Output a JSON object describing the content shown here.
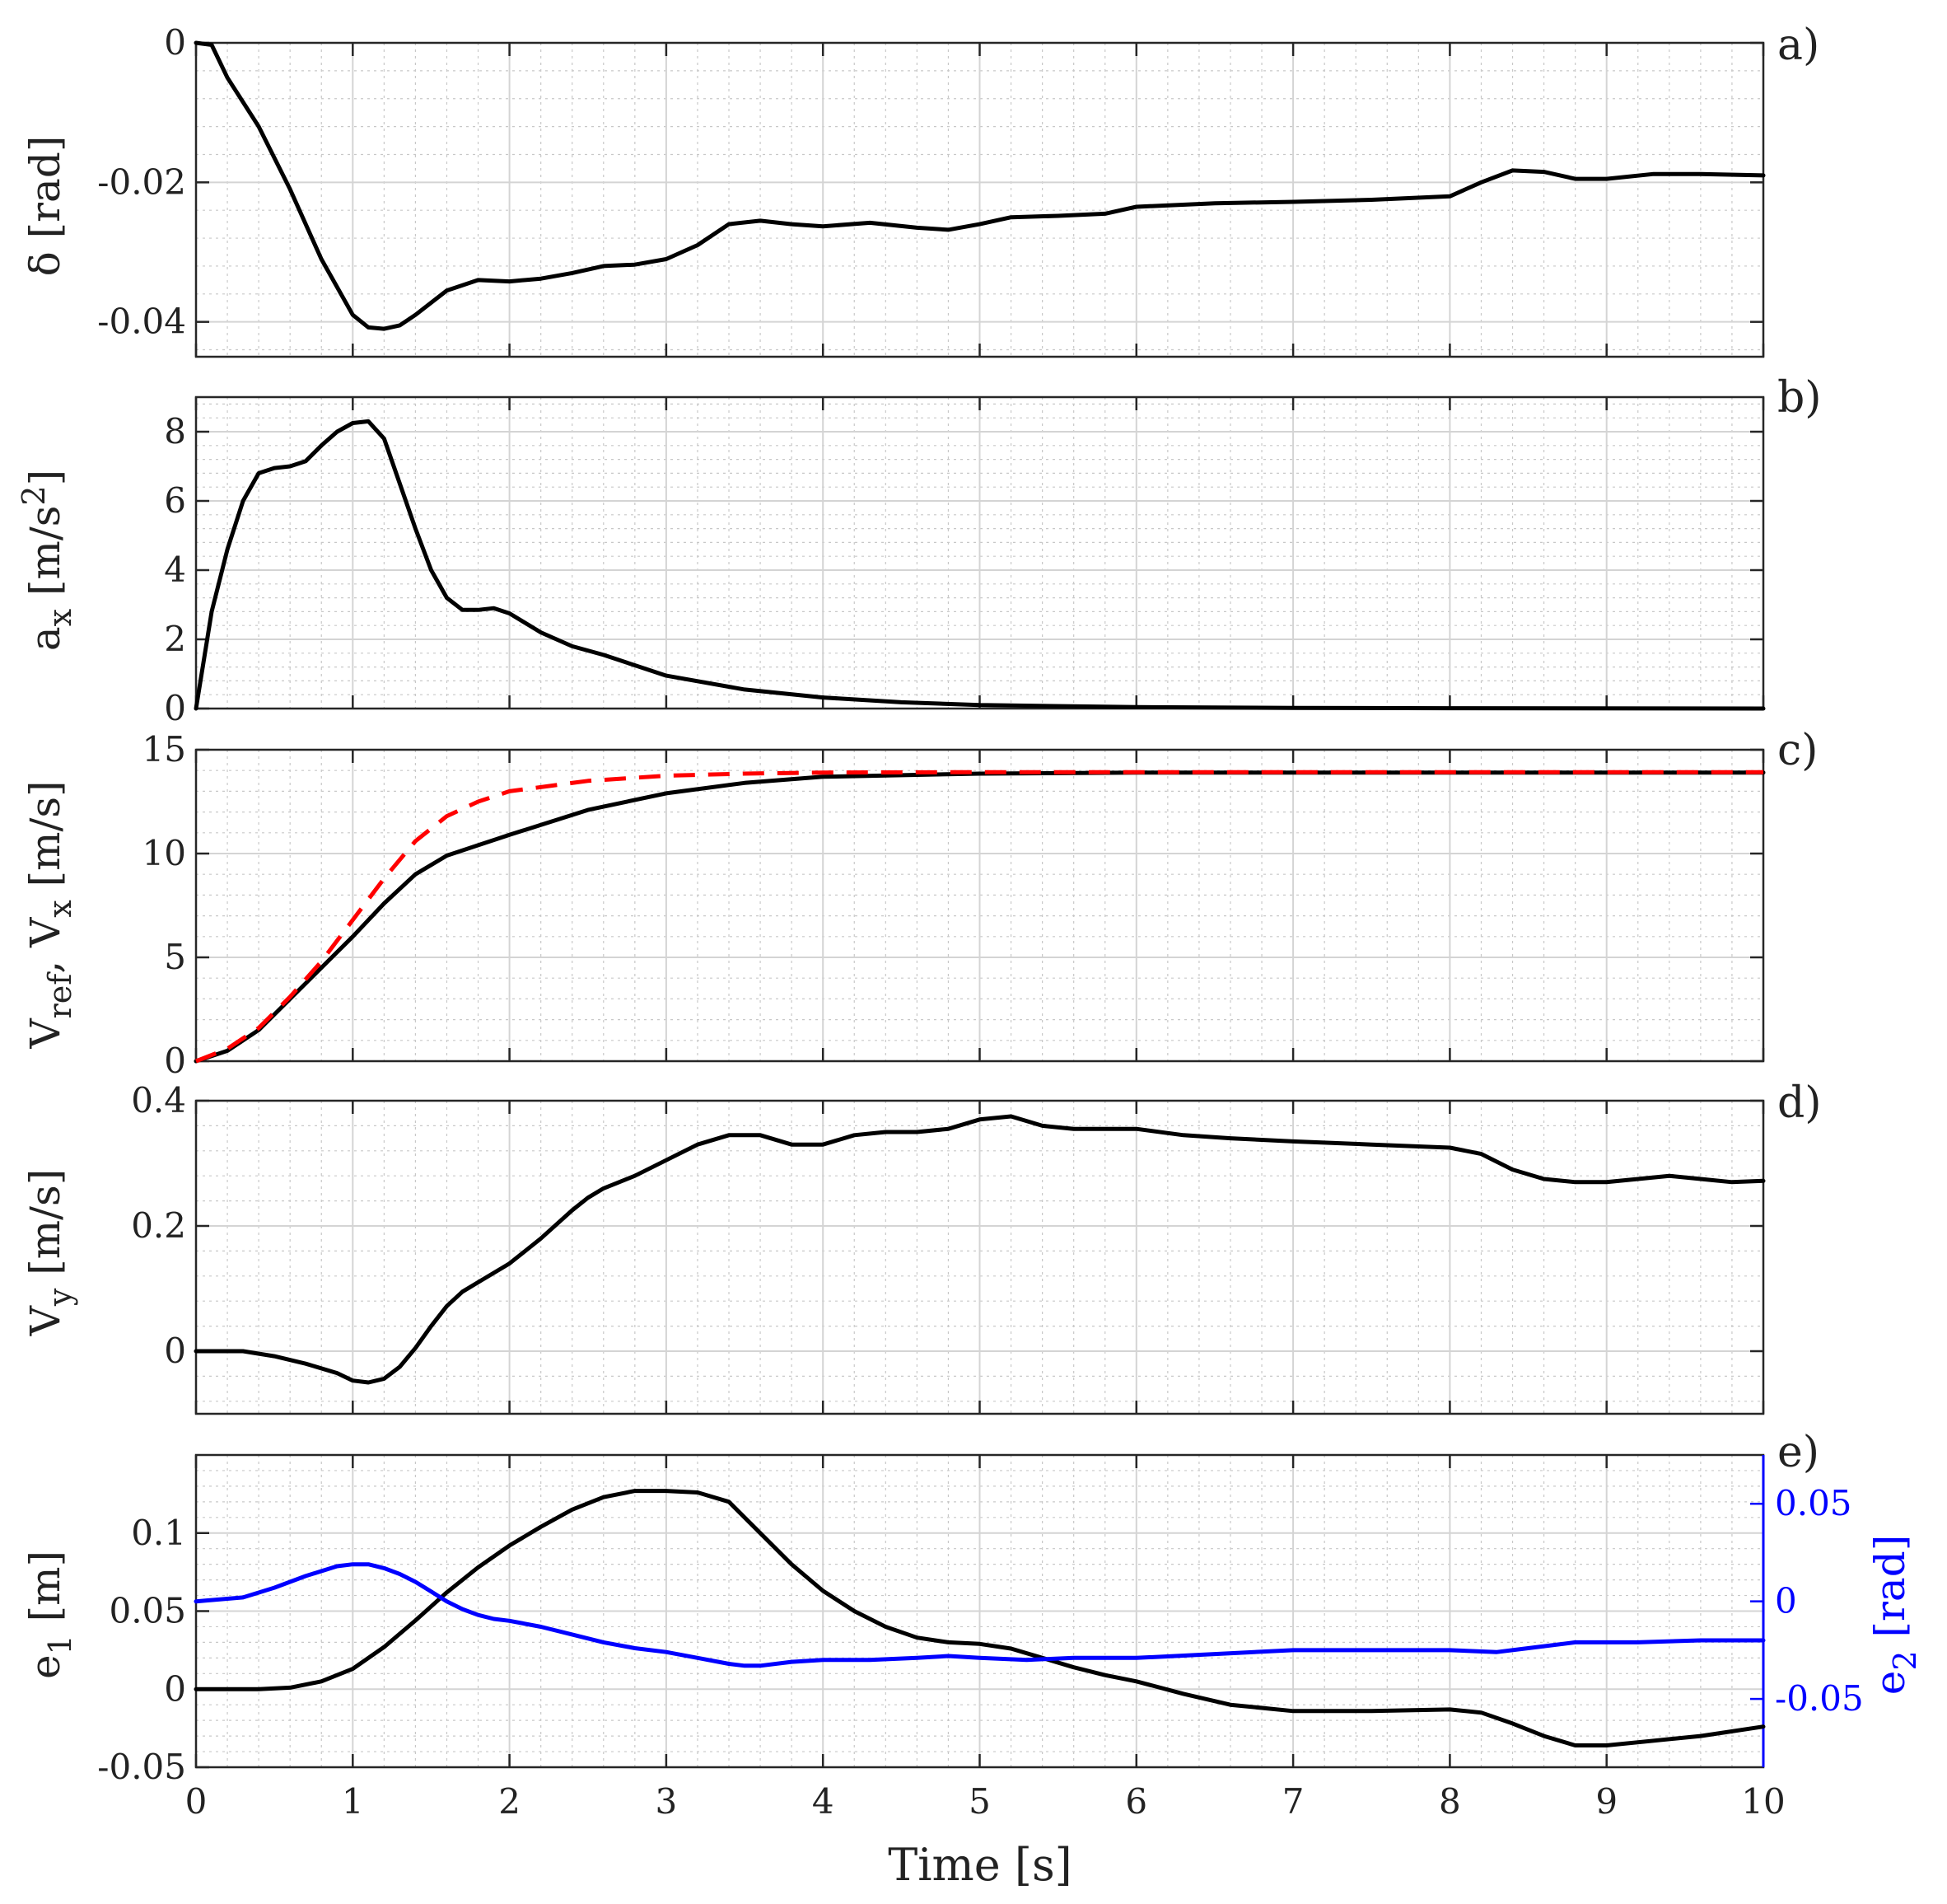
{
  "chart_data": {
    "type": "line",
    "x_axis": {
      "label": "Time [s]",
      "range": [
        0,
        10
      ],
      "ticks": [
        0,
        1,
        2,
        3,
        4,
        5,
        6,
        7,
        8,
        9,
        10
      ],
      "tick_labels": [
        "0",
        "1",
        "2",
        "3",
        "4",
        "5",
        "6",
        "7",
        "8",
        "9",
        "10"
      ]
    },
    "grid": true,
    "panels": [
      {
        "id": "a",
        "panel_label": "a)",
        "ylabel": "δ [rad]",
        "ylim": [
          -0.045,
          0
        ],
        "yticks": [
          -0.04,
          -0.02,
          0
        ],
        "ytick_labels": [
          "-0.04",
          "-0.02",
          "0"
        ],
        "series": [
          {
            "name": "δ",
            "color": "#000000",
            "dashed": false,
            "x": [
              0,
              0.1,
              0.2,
              0.4,
              0.6,
              0.8,
              1.0,
              1.1,
              1.2,
              1.3,
              1.4,
              1.6,
              1.8,
              2.0,
              2.2,
              2.4,
              2.6,
              2.8,
              3.0,
              3.2,
              3.4,
              3.6,
              3.8,
              4.0,
              4.3,
              4.6,
              4.8,
              5.0,
              5.2,
              5.5,
              5.8,
              6.0,
              6.5,
              7.0,
              7.5,
              8.0,
              8.2,
              8.4,
              8.6,
              8.8,
              9.0,
              9.3,
              9.6,
              10.0
            ],
            "y": [
              0,
              -0.0003,
              -0.005,
              -0.012,
              -0.021,
              -0.031,
              -0.039,
              -0.0408,
              -0.041,
              -0.0405,
              -0.039,
              -0.0355,
              -0.034,
              -0.0342,
              -0.0338,
              -0.033,
              -0.032,
              -0.0318,
              -0.031,
              -0.029,
              -0.026,
              -0.0255,
              -0.026,
              -0.0263,
              -0.0258,
              -0.0265,
              -0.0268,
              -0.026,
              -0.025,
              -0.0248,
              -0.0245,
              -0.0235,
              -0.023,
              -0.0228,
              -0.0225,
              -0.022,
              -0.02,
              -0.0183,
              -0.0185,
              -0.0195,
              -0.0195,
              -0.0188,
              -0.0188,
              -0.019
            ]
          }
        ]
      },
      {
        "id": "b",
        "panel_label": "b)",
        "ylabel_main": "a",
        "ylabel_sub": "x",
        "ylabel_rest": " [m/s",
        "ylabel_sup": "2",
        "ylabel_end": "]",
        "ylim": [
          0,
          9
        ],
        "yticks": [
          0,
          2,
          4,
          6,
          8
        ],
        "ytick_labels": [
          "0",
          "2",
          "4",
          "6",
          "8"
        ],
        "series": [
          {
            "name": "a_x",
            "color": "#000000",
            "dashed": false,
            "x": [
              0,
              0.1,
              0.2,
              0.3,
              0.4,
              0.5,
              0.6,
              0.7,
              0.8,
              0.9,
              1.0,
              1.1,
              1.2,
              1.3,
              1.4,
              1.5,
              1.6,
              1.7,
              1.8,
              1.9,
              2.0,
              2.2,
              2.4,
              2.6,
              2.8,
              3.0,
              3.5,
              4.0,
              4.5,
              5.0,
              6.0,
              7.0,
              8.0,
              10.0
            ],
            "y": [
              0,
              2.8,
              4.6,
              6.0,
              6.8,
              6.95,
              7.0,
              7.15,
              7.6,
              8.0,
              8.25,
              8.3,
              7.8,
              6.5,
              5.2,
              4.0,
              3.2,
              2.85,
              2.85,
              2.9,
              2.75,
              2.2,
              1.8,
              1.55,
              1.25,
              0.95,
              0.55,
              0.32,
              0.18,
              0.1,
              0.04,
              0.02,
              0.01,
              0.0
            ]
          }
        ]
      },
      {
        "id": "c",
        "panel_label": "c)",
        "ylabel_main": "V",
        "ylabel_sub": "ref",
        "ylabel_rest": ", V",
        "ylabel_sub2": "x",
        "ylabel_end": " [m/s]",
        "ylim": [
          0,
          15
        ],
        "yticks": [
          0,
          5,
          10,
          15
        ],
        "ytick_labels": [
          "0",
          "5",
          "10",
          "15"
        ],
        "series": [
          {
            "name": "V_x",
            "color": "#000000",
            "dashed": false,
            "x": [
              0,
              0.2,
              0.4,
              0.6,
              0.8,
              1.0,
              1.2,
              1.4,
              1.6,
              1.8,
              2.0,
              2.5,
              3.0,
              3.5,
              4.0,
              5.0,
              6.0,
              8.0,
              10.0
            ],
            "y": [
              0,
              0.5,
              1.5,
              3.0,
              4.5,
              6.0,
              7.6,
              9.0,
              9.9,
              10.4,
              10.9,
              12.1,
              12.9,
              13.4,
              13.7,
              13.85,
              13.9,
              13.9,
              13.9
            ]
          },
          {
            "name": "V_ref",
            "color": "#ff0000",
            "dashed": true,
            "x": [
              0,
              0.2,
              0.4,
              0.6,
              0.8,
              1.0,
              1.2,
              1.4,
              1.6,
              1.8,
              2.0,
              2.5,
              3.0,
              3.5,
              4.0,
              5.0,
              6.0,
              8.0,
              10.0
            ],
            "y": [
              0,
              0.6,
              1.6,
              3.1,
              4.8,
              6.8,
              8.8,
              10.6,
              11.8,
              12.5,
              13.0,
              13.5,
              13.75,
              13.85,
              13.9,
              13.92,
              13.92,
              13.92,
              13.92
            ]
          }
        ]
      },
      {
        "id": "d",
        "panel_label": "d)",
        "ylabel_main": "V",
        "ylabel_sub": "y",
        "ylabel_end": " [m/s]",
        "ylim": [
          -0.1,
          0.4
        ],
        "yticks": [
          0,
          0.2,
          0.4
        ],
        "ytick_labels": [
          "0",
          "0.2",
          "0.4"
        ],
        "series": [
          {
            "name": "V_y",
            "color": "#000000",
            "dashed": false,
            "x": [
              0,
              0.3,
              0.5,
              0.7,
              0.9,
              1.0,
              1.1,
              1.2,
              1.3,
              1.4,
              1.5,
              1.6,
              1.7,
              1.8,
              2.0,
              2.2,
              2.4,
              2.5,
              2.6,
              2.8,
              3.0,
              3.2,
              3.4,
              3.6,
              3.8,
              4.0,
              4.2,
              4.4,
              4.6,
              4.8,
              5.0,
              5.2,
              5.4,
              5.6,
              5.8,
              6.0,
              6.3,
              6.6,
              7.0,
              7.5,
              8.0,
              8.2,
              8.4,
              8.6,
              8.8,
              9.0,
              9.2,
              9.4,
              9.6,
              9.8,
              10.0
            ],
            "y": [
              0,
              0,
              -0.008,
              -0.02,
              -0.035,
              -0.047,
              -0.05,
              -0.044,
              -0.025,
              0.005,
              0.04,
              0.072,
              0.095,
              0.11,
              0.14,
              0.18,
              0.225,
              0.245,
              0.26,
              0.28,
              0.305,
              0.33,
              0.345,
              0.345,
              0.33,
              0.33,
              0.345,
              0.35,
              0.35,
              0.355,
              0.37,
              0.375,
              0.36,
              0.355,
              0.355,
              0.355,
              0.345,
              0.34,
              0.335,
              0.33,
              0.325,
              0.315,
              0.29,
              0.275,
              0.27,
              0.27,
              0.275,
              0.28,
              0.275,
              0.27,
              0.272
            ]
          }
        ]
      },
      {
        "id": "e",
        "panel_label": "e)",
        "ylabel_main": "e",
        "ylabel_sub": "1",
        "ylabel_end": " [m]",
        "ylim": [
          -0.05,
          0.15
        ],
        "yticks": [
          -0.05,
          0,
          0.05,
          0.1
        ],
        "ytick_labels": [
          "-0.05",
          "0",
          "0.05",
          "0.1"
        ],
        "y2label_main": "e",
        "y2label_sub": "2",
        "y2label_end": " [rad]",
        "y2lim": [
          -0.085,
          0.075
        ],
        "y2ticks": [
          -0.05,
          0,
          0.05
        ],
        "y2tick_labels": [
          "-0.05",
          "0",
          "0.05"
        ],
        "y2color": "#0000ff",
        "series": [
          {
            "name": "e_1",
            "color": "#000000",
            "dashed": false,
            "axis": "left",
            "x": [
              0,
              0.4,
              0.6,
              0.8,
              1.0,
              1.2,
              1.4,
              1.6,
              1.8,
              2.0,
              2.2,
              2.4,
              2.6,
              2.8,
              3.0,
              3.2,
              3.4,
              3.6,
              3.8,
              4.0,
              4.2,
              4.4,
              4.6,
              4.8,
              5.0,
              5.2,
              5.4,
              5.6,
              5.8,
              6.0,
              6.3,
              6.6,
              7.0,
              7.5,
              8.0,
              8.2,
              8.4,
              8.6,
              8.8,
              9.0,
              9.3,
              9.6,
              10.0
            ],
            "y": [
              0,
              0,
              0.001,
              0.005,
              0.013,
              0.027,
              0.044,
              0.062,
              0.078,
              0.092,
              0.104,
              0.115,
              0.123,
              0.127,
              0.127,
              0.126,
              0.12,
              0.1,
              0.08,
              0.063,
              0.05,
              0.04,
              0.033,
              0.03,
              0.029,
              0.026,
              0.02,
              0.014,
              0.009,
              0.005,
              -0.003,
              -0.01,
              -0.014,
              -0.014,
              -0.013,
              -0.015,
              -0.022,
              -0.03,
              -0.036,
              -0.036,
              -0.033,
              -0.03,
              -0.024
            ]
          },
          {
            "name": "e_2",
            "color": "#0000ff",
            "dashed": false,
            "axis": "right",
            "x": [
              0,
              0.3,
              0.5,
              0.7,
              0.9,
              1.0,
              1.1,
              1.2,
              1.3,
              1.4,
              1.5,
              1.6,
              1.7,
              1.8,
              1.9,
              2.0,
              2.2,
              2.4,
              2.6,
              2.8,
              3.0,
              3.2,
              3.4,
              3.5,
              3.6,
              3.8,
              4.0,
              4.3,
              4.6,
              4.8,
              5.0,
              5.3,
              5.6,
              6.0,
              6.5,
              7.0,
              7.5,
              8.0,
              8.3,
              8.5,
              8.8,
              9.2,
              9.6,
              10.0
            ],
            "y": [
              0,
              0.002,
              0.007,
              0.013,
              0.018,
              0.019,
              0.019,
              0.017,
              0.014,
              0.01,
              0.005,
              0.0,
              -0.004,
              -0.007,
              -0.009,
              -0.01,
              -0.013,
              -0.017,
              -0.021,
              -0.024,
              -0.026,
              -0.029,
              -0.032,
              -0.033,
              -0.033,
              -0.031,
              -0.03,
              -0.03,
              -0.029,
              -0.028,
              -0.029,
              -0.03,
              -0.029,
              -0.029,
              -0.027,
              -0.025,
              -0.025,
              -0.025,
              -0.026,
              -0.024,
              -0.021,
              -0.021,
              -0.02,
              -0.02
            ]
          }
        ]
      }
    ]
  }
}
